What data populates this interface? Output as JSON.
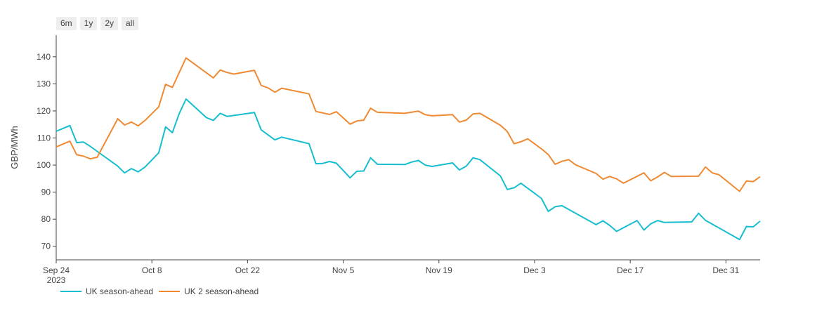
{
  "range_selector": {
    "buttons": [
      "6m",
      "1y",
      "2y",
      "all"
    ]
  },
  "chart_data": {
    "type": "line",
    "title": "",
    "xlabel": "",
    "ylabel": "GBP/MWh",
    "xlim": [
      "2023-09-24",
      "2024-01-05"
    ],
    "ylim": [
      65,
      148
    ],
    "x_ticks": [
      "2023-09-24",
      "2023-10-08",
      "2023-10-22",
      "2023-11-05",
      "2023-11-19",
      "2023-12-03",
      "2023-12-17",
      "2023-12-31"
    ],
    "x_tick_labels": [
      "Sep 24",
      "Oct 8",
      "Oct 22",
      "Nov 5",
      "Nov 19",
      "Dec 3",
      "Dec 17",
      "Dec 31"
    ],
    "x_tick_sublabel": "2023",
    "y_ticks": [
      70,
      80,
      90,
      100,
      110,
      120,
      130,
      140
    ],
    "grid": false,
    "legend_position": "bottom-left",
    "colors": {
      "series1": "#17becf",
      "series2": "#ef8a33"
    },
    "series": [
      {
        "name": "UK season-ahead",
        "color": "#17becf",
        "points": [
          [
            "2023-09-24",
            112.5
          ],
          [
            "2023-09-26",
            114.6
          ],
          [
            "2023-09-27",
            108.3
          ],
          [
            "2023-09-28",
            108.5
          ],
          [
            "2023-09-29",
            106.9
          ],
          [
            "2023-10-03",
            99.6
          ],
          [
            "2023-10-04",
            97.1
          ],
          [
            "2023-10-05",
            98.7
          ],
          [
            "2023-10-06",
            97.5
          ],
          [
            "2023-10-07",
            99.3
          ],
          [
            "2023-10-09",
            104.5
          ],
          [
            "2023-10-10",
            114.1
          ],
          [
            "2023-10-11",
            112.0
          ],
          [
            "2023-10-12",
            119.0
          ],
          [
            "2023-10-13",
            124.4
          ],
          [
            "2023-10-16",
            117.5
          ],
          [
            "2023-10-17",
            116.5
          ],
          [
            "2023-10-18",
            119.1
          ],
          [
            "2023-10-19",
            118.0
          ],
          [
            "2023-10-23",
            119.4
          ],
          [
            "2023-10-24",
            113.0
          ],
          [
            "2023-10-26",
            109.3
          ],
          [
            "2023-10-27",
            110.3
          ],
          [
            "2023-10-31",
            107.9
          ],
          [
            "2023-11-01",
            100.5
          ],
          [
            "2023-11-02",
            100.6
          ],
          [
            "2023-11-03",
            101.3
          ],
          [
            "2023-11-04",
            100.7
          ],
          [
            "2023-11-06",
            95.3
          ],
          [
            "2023-11-07",
            97.7
          ],
          [
            "2023-11-08",
            97.8
          ],
          [
            "2023-11-09",
            102.7
          ],
          [
            "2023-11-10",
            100.3
          ],
          [
            "2023-11-14",
            100.2
          ],
          [
            "2023-11-15",
            101.1
          ],
          [
            "2023-11-16",
            101.7
          ],
          [
            "2023-11-17",
            100.0
          ],
          [
            "2023-11-18",
            99.5
          ],
          [
            "2023-11-21",
            100.8
          ],
          [
            "2023-11-22",
            98.2
          ],
          [
            "2023-11-23",
            99.6
          ],
          [
            "2023-11-24",
            102.7
          ],
          [
            "2023-11-25",
            102.0
          ],
          [
            "2023-11-28",
            96.0
          ],
          [
            "2023-11-29",
            91.0
          ],
          [
            "2023-11-30",
            91.6
          ],
          [
            "2023-12-01",
            93.3
          ],
          [
            "2023-12-04",
            87.7
          ],
          [
            "2023-12-05",
            82.9
          ],
          [
            "2023-12-06",
            84.6
          ],
          [
            "2023-12-07",
            85.0
          ],
          [
            "2023-12-12",
            78.0
          ],
          [
            "2023-12-13",
            79.4
          ],
          [
            "2023-12-14",
            77.7
          ],
          [
            "2023-12-15",
            75.5
          ],
          [
            "2023-12-18",
            79.5
          ],
          [
            "2023-12-19",
            76.0
          ],
          [
            "2023-12-20",
            78.3
          ],
          [
            "2023-12-21",
            79.5
          ],
          [
            "2023-12-22",
            78.8
          ],
          [
            "2023-12-26",
            79.0
          ],
          [
            "2023-12-27",
            82.2
          ],
          [
            "2023-12-28",
            79.6
          ],
          [
            "2024-01-02",
            72.5
          ],
          [
            "2024-01-03",
            77.3
          ],
          [
            "2024-01-04",
            77.2
          ],
          [
            "2024-01-05",
            79.3
          ]
        ]
      },
      {
        "name": "UK 2 season-ahead",
        "color": "#ef8a33",
        "points": [
          [
            "2023-09-24",
            106.7
          ],
          [
            "2023-09-26",
            108.8
          ],
          [
            "2023-09-27",
            103.8
          ],
          [
            "2023-09-28",
            103.3
          ],
          [
            "2023-09-29",
            102.3
          ],
          [
            "2023-09-30",
            102.9
          ],
          [
            "2023-10-03",
            117.1
          ],
          [
            "2023-10-04",
            114.8
          ],
          [
            "2023-10-05",
            115.9
          ],
          [
            "2023-10-06",
            114.5
          ],
          [
            "2023-10-07",
            116.5
          ],
          [
            "2023-10-09",
            121.5
          ],
          [
            "2023-10-10",
            129.8
          ],
          [
            "2023-10-11",
            128.7
          ],
          [
            "2023-10-13",
            139.6
          ],
          [
            "2023-10-17",
            132.2
          ],
          [
            "2023-10-18",
            135.1
          ],
          [
            "2023-10-19",
            134.2
          ],
          [
            "2023-10-20",
            133.6
          ],
          [
            "2023-10-23",
            135.0
          ],
          [
            "2023-10-24",
            129.4
          ],
          [
            "2023-10-25",
            128.5
          ],
          [
            "2023-10-26",
            126.9
          ],
          [
            "2023-10-27",
            128.4
          ],
          [
            "2023-10-31",
            126.3
          ],
          [
            "2023-11-01",
            119.8
          ],
          [
            "2023-11-03",
            118.7
          ],
          [
            "2023-11-04",
            119.7
          ],
          [
            "2023-11-06",
            115.1
          ],
          [
            "2023-11-07",
            116.3
          ],
          [
            "2023-11-08",
            116.6
          ],
          [
            "2023-11-09",
            121.0
          ],
          [
            "2023-11-10",
            119.5
          ],
          [
            "2023-11-14",
            119.1
          ],
          [
            "2023-11-16",
            119.9
          ],
          [
            "2023-11-17",
            118.6
          ],
          [
            "2023-11-18",
            118.2
          ],
          [
            "2023-11-21",
            118.6
          ],
          [
            "2023-11-22",
            115.9
          ],
          [
            "2023-11-23",
            116.6
          ],
          [
            "2023-11-24",
            118.9
          ],
          [
            "2023-11-25",
            119.1
          ],
          [
            "2023-11-28",
            114.7
          ],
          [
            "2023-11-29",
            112.4
          ],
          [
            "2023-11-30",
            107.9
          ],
          [
            "2023-12-01",
            108.6
          ],
          [
            "2023-12-02",
            109.7
          ],
          [
            "2023-12-04",
            106.0
          ],
          [
            "2023-12-05",
            103.9
          ],
          [
            "2023-12-06",
            100.3
          ],
          [
            "2023-12-07",
            101.4
          ],
          [
            "2023-12-08",
            102.0
          ],
          [
            "2023-12-09",
            100.1
          ],
          [
            "2023-12-12",
            96.9
          ],
          [
            "2023-12-13",
            94.8
          ],
          [
            "2023-12-14",
            95.8
          ],
          [
            "2023-12-15",
            94.9
          ],
          [
            "2023-12-16",
            93.3
          ],
          [
            "2023-12-19",
            97.1
          ],
          [
            "2023-12-20",
            94.2
          ],
          [
            "2023-12-21",
            95.6
          ],
          [
            "2023-12-22",
            97.3
          ],
          [
            "2023-12-23",
            95.8
          ],
          [
            "2023-12-27",
            95.9
          ],
          [
            "2023-12-28",
            99.3
          ],
          [
            "2023-12-29",
            97.1
          ],
          [
            "2023-12-30",
            96.4
          ],
          [
            "2024-01-02",
            90.3
          ],
          [
            "2024-01-03",
            94.1
          ],
          [
            "2024-01-04",
            93.9
          ],
          [
            "2024-01-05",
            95.7
          ]
        ]
      }
    ]
  }
}
